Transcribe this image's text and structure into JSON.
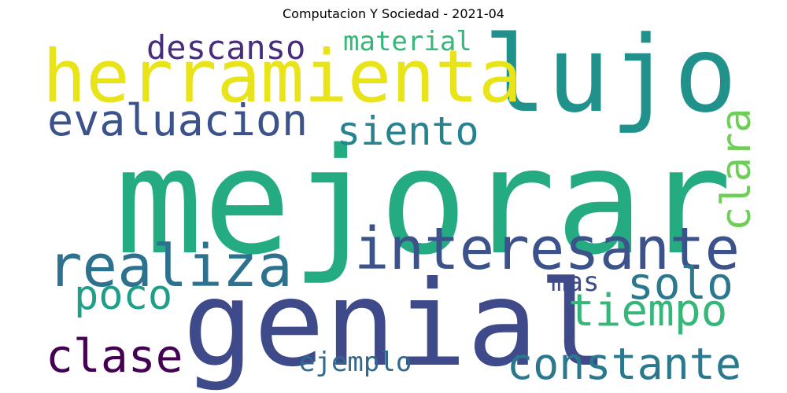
{
  "title": "Computacion Y Sociedad - 2021-04",
  "words": {
    "mejorar": {
      "text": "mejorar",
      "color": "#25ab82"
    },
    "genial": {
      "text": "genial",
      "color": "#3e4a89"
    },
    "lujo": {
      "text": "lujo",
      "color": "#21918c"
    },
    "herramienta": {
      "text": "herramienta",
      "color": "#e8e419"
    },
    "interesante": {
      "text": "interesante",
      "color": "#3b528b"
    },
    "realiza": {
      "text": "realiza",
      "color": "#2c718e"
    },
    "evaluacion": {
      "text": "evaluacion",
      "color": "#3b528b"
    },
    "constante": {
      "text": "constante",
      "color": "#2a788e"
    },
    "clase": {
      "text": "clase",
      "color": "#440154"
    },
    "tiempo": {
      "text": "tiempo",
      "color": "#35b779"
    },
    "solo": {
      "text": "solo",
      "color": "#2a788e"
    },
    "poco": {
      "text": "poco",
      "color": "#1f9e89"
    },
    "siento": {
      "text": "siento",
      "color": "#26828e"
    },
    "clara": {
      "text": "clara",
      "color": "#6ece58"
    },
    "descanso": {
      "text": "descanso",
      "color": "#472d7b"
    },
    "material": {
      "text": "material",
      "color": "#35b779"
    },
    "mas": {
      "text": "mas",
      "color": "#3e4a89"
    },
    "ejemplo": {
      "text": "ejemplo",
      "color": "#31688e"
    }
  }
}
